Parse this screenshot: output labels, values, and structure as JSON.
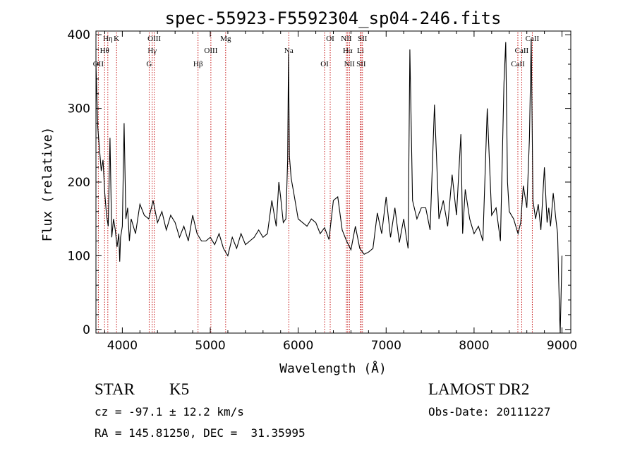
{
  "chart_data": {
    "type": "line",
    "title": "spec-55923-F5592304_sp04-246.fits",
    "xlabel": "Wavelength (Å)",
    "ylabel": "Flux (relative)",
    "xlim": [
      3700,
      9100
    ],
    "ylim": [
      -5,
      405
    ],
    "xticks": [
      4000,
      5000,
      6000,
      7000,
      8000,
      9000
    ],
    "yticks": [
      0,
      100,
      200,
      300,
      400
    ],
    "grid": false,
    "line_color": "#000000",
    "marker_color": "#c00000",
    "spectrum": {
      "x": [
        3700,
        3720,
        3740,
        3760,
        3780,
        3800,
        3820,
        3840,
        3860,
        3880,
        3900,
        3920,
        3940,
        3960,
        3970,
        3980,
        4000,
        4020,
        4040,
        4060,
        4080,
        4100,
        4150,
        4200,
        4250,
        4300,
        4350,
        4400,
        4450,
        4500,
        4550,
        4600,
        4650,
        4700,
        4750,
        4800,
        4850,
        4900,
        4950,
        5000,
        5050,
        5100,
        5150,
        5200,
        5250,
        5300,
        5350,
        5400,
        5450,
        5500,
        5550,
        5600,
        5650,
        5700,
        5750,
        5780,
        5800,
        5830,
        5860,
        5880,
        5890,
        5900,
        5920,
        5950,
        6000,
        6050,
        6100,
        6150,
        6200,
        6250,
        6300,
        6350,
        6400,
        6450,
        6500,
        6550,
        6600,
        6650,
        6700,
        6750,
        6800,
        6850,
        6900,
        6950,
        7000,
        7050,
        7100,
        7150,
        7200,
        7230,
        7250,
        7270,
        7300,
        7350,
        7400,
        7450,
        7500,
        7550,
        7600,
        7650,
        7700,
        7750,
        7800,
        7850,
        7870,
        7900,
        7950,
        8000,
        8050,
        8100,
        8150,
        8200,
        8250,
        8300,
        8340,
        8360,
        8380,
        8400,
        8450,
        8500,
        8530,
        8560,
        8600,
        8630,
        8650,
        8670,
        8700,
        8730,
        8760,
        8800,
        8830,
        8850,
        8870,
        8900,
        8930,
        8950,
        8970,
        8980,
        9000
      ],
      "y": [
        360,
        275,
        245,
        215,
        230,
        185,
        155,
        140,
        260,
        125,
        150,
        135,
        112,
        130,
        92,
        125,
        140,
        280,
        150,
        165,
        120,
        150,
        130,
        170,
        155,
        150,
        175,
        145,
        160,
        135,
        155,
        145,
        125,
        140,
        120,
        155,
        130,
        120,
        120,
        125,
        115,
        130,
        110,
        100,
        125,
        110,
        130,
        115,
        120,
        125,
        135,
        125,
        130,
        175,
        140,
        200,
        180,
        145,
        150,
        230,
        375,
        235,
        205,
        185,
        150,
        145,
        140,
        150,
        145,
        130,
        138,
        122,
        175,
        180,
        135,
        120,
        108,
        140,
        110,
        102,
        105,
        110,
        158,
        130,
        180,
        125,
        165,
        118,
        150,
        125,
        110,
        380,
        175,
        150,
        165,
        165,
        135,
        305,
        150,
        175,
        140,
        210,
        155,
        265,
        130,
        190,
        150,
        130,
        140,
        120,
        300,
        155,
        165,
        120,
        335,
        390,
        200,
        160,
        150,
        130,
        145,
        195,
        165,
        260,
        395,
        175,
        150,
        170,
        135,
        220,
        145,
        165,
        140,
        185,
        150,
        130,
        30,
        -5,
        100
      ]
    },
    "line_markers": [
      {
        "label": "Hη",
        "wave": 3835
      },
      {
        "label": "Hθ",
        "wave": 3798
      },
      {
        "label": "OII",
        "wave": 3727
      },
      {
        "label": "K",
        "wave": 3934
      },
      {
        "label": "Hγ",
        "wave": 4340
      },
      {
        "label": "G",
        "wave": 4305
      },
      {
        "label": "OIII",
        "wave": 4363
      },
      {
        "label": "OIII",
        "wave": 5007
      },
      {
        "label": "Hβ",
        "wave": 4861
      },
      {
        "label": "Mg",
        "wave": 5175
      },
      {
        "label": "Na",
        "wave": 5893
      },
      {
        "label": "OI",
        "wave": 6300
      },
      {
        "label": "OI",
        "wave": 6364
      },
      {
        "label": "Hα",
        "wave": 6563
      },
      {
        "label": "SII",
        "wave": 6716
      },
      {
        "label": "NII",
        "wave": 6548
      },
      {
        "label": "Li",
        "wave": 6708
      },
      {
        "label": "NII",
        "wave": 6583
      },
      {
        "label": "SII",
        "wave": 6731
      },
      {
        "label": "CaII",
        "wave": 8542
      },
      {
        "label": "CaII",
        "wave": 8498
      },
      {
        "label": "CaII",
        "wave": 8662
      }
    ]
  },
  "info": {
    "object_class": "STAR",
    "subclass": "K5",
    "survey": "LAMOST DR2",
    "redshift": "cz = -97.1 ± 12.2 km/s",
    "obs_date": "Obs-Date: 20111227",
    "coords": "RA = 145.81250, DEC =  31.35995"
  }
}
